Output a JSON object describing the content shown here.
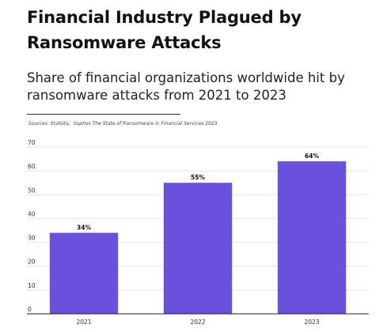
{
  "header": {
    "title": "Financial Industry Plagued by Ransomware Attacks",
    "subtitle": "Share of financial organizations worldwide hit by ransomware attacks from 2021 to 2023"
  },
  "source": {
    "label": "Sources: Statista;",
    "text": "Sophos The State of Ransomware in Financial Services 2023"
  },
  "colors": {
    "bar": "#6a50dc",
    "grid": "#e4e4e4",
    "axis": "#222222"
  },
  "chart_data": {
    "type": "bar",
    "categories": [
      "2021",
      "2022",
      "2023"
    ],
    "values": [
      34,
      55,
      64
    ],
    "data_labels": [
      "34%",
      "55%",
      "64%"
    ],
    "ylim": [
      0,
      70
    ],
    "yticks": [
      0,
      10,
      20,
      30,
      40,
      50,
      60,
      70
    ],
    "grid": true,
    "title": "",
    "xlabel": "",
    "ylabel": ""
  }
}
